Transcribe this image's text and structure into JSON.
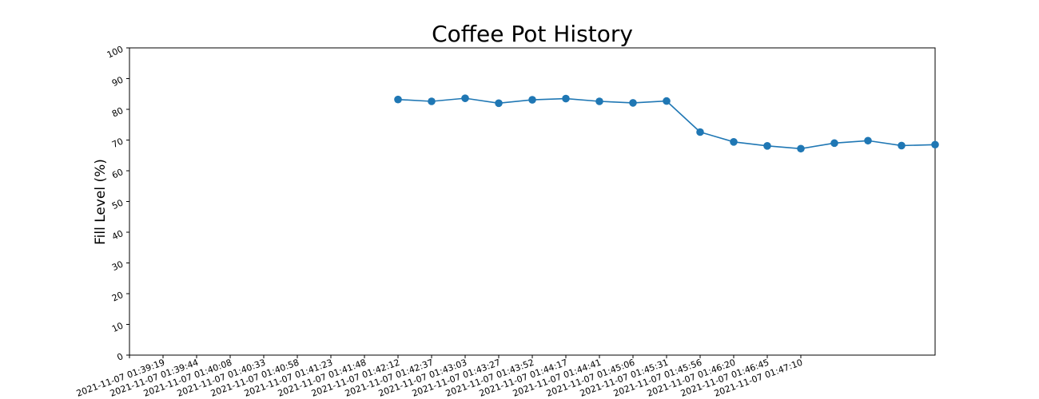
{
  "chart_data": {
    "type": "line",
    "title": "Coffee Pot History",
    "xlabel": "",
    "ylabel": "Fill Level (%)",
    "ylim": [
      0,
      100
    ],
    "yticks": [
      "0",
      "10",
      "20",
      "30",
      "40",
      "50",
      "60",
      "70",
      "80",
      "90",
      "100"
    ],
    "xticks": [
      "",
      "2021-11-07 01:39:19",
      "2021-11-07 01:39:44",
      "2021-11-07 01:40:08",
      "2021-11-07 01:40:33",
      "2021-11-07 01:40:58",
      "2021-11-07 01:41:23",
      "2021-11-07 01:41:48",
      "2021-11-07 01:42:12",
      "2021-11-07 01:42:37",
      "2021-11-07 01:43:03",
      "2021-11-07 01:43:27",
      "2021-11-07 01:43:52",
      "2021-11-07 01:44:17",
      "2021-11-07 01:44:41",
      "2021-11-07 01:45:06",
      "2021-11-07 01:45:31",
      "2021-11-07 01:45:56",
      "2021-11-07 01:46:20",
      "2021-11-07 01:46:45",
      "2021-11-07 01:47:10"
    ],
    "series": [
      {
        "color": "#1f77b4",
        "points": [
          {
            "x": 8,
            "y": 83.2
          },
          {
            "x": 9,
            "y": 82.6
          },
          {
            "x": 10,
            "y": 83.6
          },
          {
            "x": 11,
            "y": 82.0
          },
          {
            "x": 12,
            "y": 83.1
          },
          {
            "x": 13,
            "y": 83.5
          },
          {
            "x": 14,
            "y": 82.6
          },
          {
            "x": 15,
            "y": 82.1
          },
          {
            "x": 16,
            "y": 82.7
          },
          {
            "x": 17,
            "y": 72.6
          },
          {
            "x": 18,
            "y": 69.4
          },
          {
            "x": 19,
            "y": 68.1
          },
          {
            "x": 20,
            "y": 67.2
          },
          {
            "x": 21,
            "y": 69.0
          },
          {
            "x": 22,
            "y": 69.8
          },
          {
            "x": 23,
            "y": 68.2
          },
          {
            "x": 24,
            "y": 68.5
          }
        ]
      }
    ],
    "grid": false
  }
}
